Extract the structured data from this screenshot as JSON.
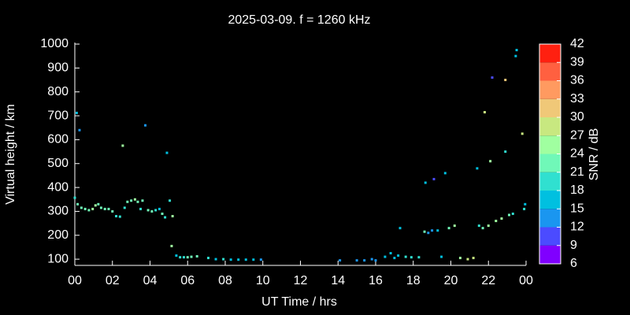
{
  "chart_data": {
    "type": "scatter",
    "title": "2025-03-09. f = 1260 kHz",
    "x_label": "UT Time / hrs",
    "y_label": "Virtual height / km",
    "xlim": [
      0,
      24
    ],
    "ylim": [
      74,
      1000
    ],
    "xticks": [
      {
        "value": 0,
        "label": "00"
      },
      {
        "value": 2,
        "label": "02"
      },
      {
        "value": 4,
        "label": "04"
      },
      {
        "value": 6,
        "label": "06"
      },
      {
        "value": 8,
        "label": "08"
      },
      10,
      12,
      14,
      16,
      18,
      20,
      22,
      {
        "value": 24,
        "label": "00"
      }
    ],
    "yticks": [
      100,
      200,
      300,
      400,
      500,
      600,
      700,
      800,
      900,
      1000
    ],
    "x": [
      0.0,
      0.1,
      0.25,
      0.15,
      0.35,
      0.55,
      0.75,
      0.95,
      1.1,
      1.25,
      1.4,
      1.6,
      1.8,
      2.0,
      2.2,
      2.4,
      2.55,
      2.65,
      2.8,
      3.0,
      3.2,
      3.35,
      3.5,
      3.6,
      3.75,
      3.9,
      4.1,
      4.3,
      4.5,
      4.65,
      4.8,
      4.9,
      5.05,
      5.2,
      5.15,
      5.4,
      5.6,
      5.8,
      6.0,
      6.2,
      6.5,
      7.1,
      7.5,
      7.9,
      8.3,
      8.7,
      9.1,
      9.5,
      9.9,
      14.1,
      15.0,
      15.4,
      15.8,
      16.0,
      16.5,
      16.8,
      17.0,
      17.2,
      17.3,
      17.6,
      17.9,
      18.3,
      18.6,
      18.65,
      18.8,
      19.0,
      19.1,
      19.3,
      19.5,
      19.7,
      19.9,
      20.2,
      20.5,
      20.9,
      21.2,
      21.4,
      21.5,
      21.7,
      21.8,
      22.0,
      22.1,
      22.2,
      22.4,
      22.7,
      22.9,
      22.9,
      23.1,
      23.3,
      23.5,
      23.45,
      23.8,
      23.9,
      23.95
    ],
    "y": [
      357,
      712,
      640,
      330,
      315,
      310,
      305,
      310,
      325,
      330,
      315,
      310,
      310,
      300,
      280,
      278,
      575,
      315,
      340,
      345,
      350,
      340,
      310,
      345,
      660,
      305,
      300,
      305,
      310,
      290,
      275,
      545,
      345,
      280,
      155,
      115,
      108,
      108,
      108,
      110,
      112,
      105,
      100,
      100,
      98,
      98,
      98,
      98,
      98,
      95,
      95,
      95,
      100,
      95,
      110,
      125,
      105,
      115,
      230,
      110,
      108,
      108,
      215,
      420,
      210,
      220,
      435,
      220,
      110,
      460,
      230,
      240,
      105,
      100,
      105,
      480,
      240,
      230,
      715,
      240,
      510,
      860,
      260,
      270,
      850,
      550,
      285,
      290,
      975,
      950,
      625,
      310,
      330
    ],
    "snr": [
      20,
      16,
      12,
      22,
      22,
      23,
      22,
      24,
      24,
      23,
      22,
      22,
      22,
      21,
      19,
      19,
      26,
      20,
      21,
      22,
      24,
      23,
      20,
      23,
      12,
      22,
      22,
      20,
      17,
      21,
      20,
      17,
      19,
      24,
      24,
      15,
      19,
      20,
      21,
      21,
      22,
      18,
      17,
      18,
      17,
      16,
      15,
      15,
      14,
      13,
      13,
      14,
      14,
      14,
      15,
      16,
      16,
      17,
      15,
      19,
      20,
      20,
      22,
      16,
      13,
      12,
      11,
      15,
      17,
      15,
      23,
      25,
      25,
      29,
      27,
      16,
      20,
      21,
      28,
      26,
      24,
      10,
      26,
      25,
      30,
      20,
      21,
      18,
      17,
      15,
      28,
      20,
      15
    ],
    "colorbar": {
      "label": "SNR / dB",
      "lim": [
        6,
        42
      ],
      "ticks": [
        6,
        9,
        12,
        15,
        18,
        21,
        24,
        27,
        30,
        33,
        36,
        39,
        42
      ],
      "colors": [
        "#8000ff",
        "#4b4bff",
        "#1a96f0",
        "#00c0e0",
        "#30e0d0",
        "#70f8b8",
        "#a0ffa0",
        "#c8e880",
        "#f0c878",
        "#ff9a60",
        "#ff6040",
        "#ff2010"
      ]
    }
  }
}
